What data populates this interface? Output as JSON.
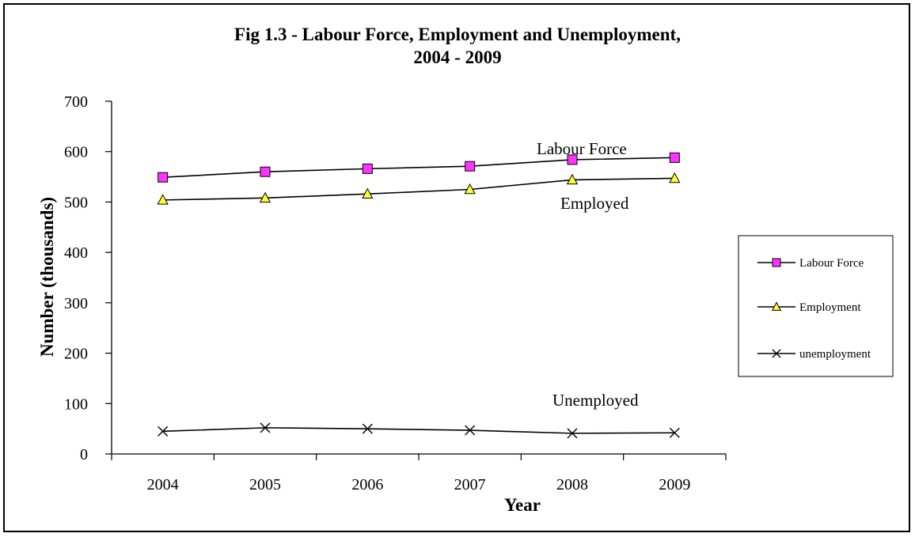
{
  "chart_data": {
    "type": "line",
    "title_line1": "Fig 1.3 - Labour Force, Employment and Unemployment,",
    "title_line2": "2004 - 2009",
    "xlabel": "Year",
    "ylabel": "Number (thousands)",
    "categories": [
      "2004",
      "2005",
      "2006",
      "2007",
      "2008",
      "2009"
    ],
    "ylim": [
      0,
      700
    ],
    "yticks": [
      "0",
      "100",
      "200",
      "300",
      "400",
      "500",
      "600",
      "700"
    ],
    "grid": false,
    "legend_position": "right",
    "series": [
      {
        "name": "Labour Force",
        "marker": "square",
        "color": "#ff33ff",
        "values": [
          549,
          560,
          566,
          571,
          584,
          588
        ]
      },
      {
        "name": "Employment",
        "marker": "triangle",
        "color": "#ffff33",
        "values": [
          504,
          508,
          516,
          525,
          544,
          547
        ]
      },
      {
        "name": "unemployment",
        "marker": "x",
        "color": "#000000",
        "values": [
          45,
          52,
          50,
          47,
          41,
          42
        ]
      }
    ],
    "annotations": [
      "Labour Force",
      "Employed",
      "Unemployed"
    ]
  }
}
